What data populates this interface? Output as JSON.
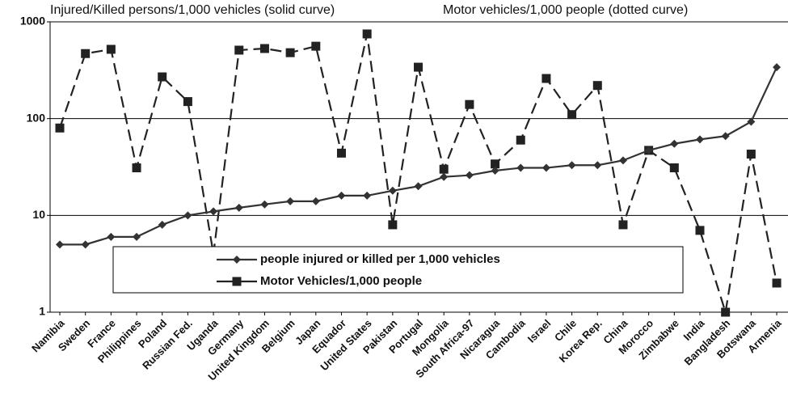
{
  "chart_data": {
    "type": "line",
    "annotations": [
      "Injured/Killed persons/1,000 vehicles (solid curve)",
      "Motor vehicles/1,000 people (dotted curve)"
    ],
    "categories": [
      "Namibia",
      "Sweden",
      "France",
      "Philippines",
      "Poland",
      "Russian Fed.",
      "Uganda",
      "Germany",
      "United Kingdom",
      "Belgium",
      "Japan",
      "Equador",
      "United States",
      "Pakistan",
      "Portugal",
      "Mongolia",
      "South Africa-97",
      "Nicaragua",
      "Cambodia",
      "Israel",
      "Chile",
      "Korea Rep.",
      "China",
      "Morocco",
      "Zimbabwe",
      "India",
      "Bangladesh",
      "Botswana",
      "Armenia"
    ],
    "series": [
      {
        "name": "people injured or killed per 1,000 vehicles",
        "color": "#333333",
        "dash": false,
        "marker": "diamond",
        "values": [
          5,
          5,
          6,
          6,
          8,
          10,
          11,
          12,
          13,
          14,
          14,
          16,
          16,
          18,
          20,
          25,
          26,
          29,
          31,
          31,
          33,
          33,
          37,
          47,
          55,
          61,
          66,
          93,
          340
        ]
      },
      {
        "name": "Motor Vehicles/1,000 people",
        "color": "#222222",
        "dash": true,
        "marker": "square",
        "values": [
          80,
          470,
          520,
          31,
          270,
          150,
          4,
          510,
          530,
          480,
          560,
          44,
          750,
          8,
          340,
          30,
          140,
          34,
          60,
          260,
          110,
          220,
          8,
          47,
          31,
          7,
          1,
          43,
          2
        ]
      }
    ],
    "ylim": [
      1,
      1000
    ],
    "yticks": [
      1,
      10,
      100,
      1000
    ],
    "log_y": true,
    "grid": true
  }
}
